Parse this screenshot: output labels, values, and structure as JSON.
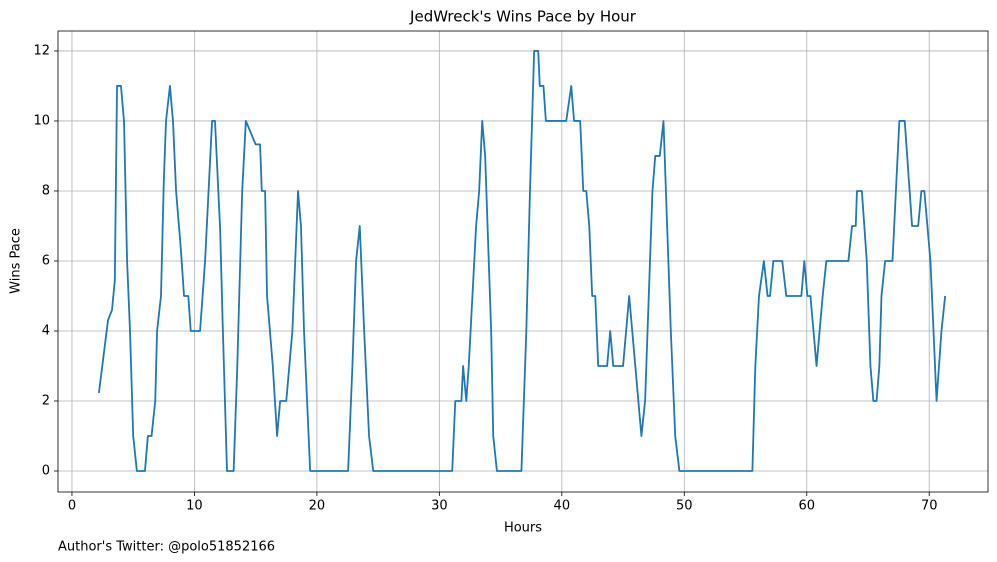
{
  "chart_data": {
    "type": "line",
    "title": "JedWreck's Wins Pace by Hour",
    "x_label": "Hours",
    "y_label": "Wins Pace",
    "footnote": "Author's Twitter: @polo51852166",
    "color": "#1f77b4",
    "grid": true,
    "xlim": [
      -1.14,
      74.8
    ],
    "ylim": [
      -0.6,
      12.57
    ],
    "xticks": [
      0,
      10,
      20,
      30,
      40,
      50,
      60,
      70
    ],
    "yticks": [
      0,
      2,
      4,
      6,
      8,
      10,
      12
    ],
    "x": [
      2.2,
      2.94,
      3.27,
      3.5,
      3.68,
      4.0,
      4.25,
      4.5,
      4.74,
      5.0,
      5.3,
      5.96,
      6.2,
      6.5,
      6.8,
      6.95,
      7.27,
      7.5,
      7.68,
      8.0,
      8.25,
      8.5,
      8.9,
      9.15,
      9.5,
      9.7,
      10.46,
      10.87,
      11.44,
      11.68,
      12.1,
      12.3,
      12.66,
      13.2,
      13.5,
      13.9,
      14.2,
      15.0,
      15.36,
      15.5,
      15.77,
      15.93,
      16.4,
      16.75,
      17.0,
      17.5,
      18.0,
      18.46,
      18.7,
      18.95,
      19.2,
      19.45,
      22.55,
      22.9,
      23.2,
      23.5,
      23.86,
      24.26,
      24.6,
      31.05,
      31.3,
      31.8,
      31.94,
      32.2,
      32.4,
      33.0,
      33.25,
      33.5,
      33.74,
      34.23,
      34.4,
      34.7,
      36.7,
      37.1,
      37.4,
      37.74,
      38.07,
      38.2,
      38.5,
      38.7,
      40.36,
      40.77,
      41.0,
      41.5,
      41.75,
      42.0,
      42.24,
      42.48,
      42.73,
      42.97,
      43.7,
      43.95,
      44.2,
      45.0,
      45.5,
      46.0,
      46.5,
      46.8,
      47.4,
      47.63,
      48.0,
      48.3,
      48.6,
      48.9,
      49.26,
      49.6,
      55.56,
      55.8,
      56.1,
      56.5,
      56.8,
      57.0,
      57.27,
      58.0,
      58.33,
      59.56,
      59.8,
      60.05,
      60.3,
      60.8,
      61.3,
      61.6,
      63.4,
      63.7,
      64.0,
      64.1,
      64.5,
      64.9,
      65.2,
      65.44,
      65.7,
      65.93,
      66.1,
      66.4,
      67.0,
      67.56,
      68.0,
      68.4,
      68.6,
      69.1,
      69.36,
      69.6,
      70.1,
      70.6,
      71.0,
      71.3
    ],
    "values": [
      2.23,
      4.3,
      4.6,
      5.45,
      11,
      11,
      10,
      6,
      4,
      1,
      0,
      0,
      1,
      1,
      2,
      4,
      5,
      8.3,
      10,
      11,
      10,
      8,
      6.3,
      5,
      5,
      4,
      4,
      6,
      10,
      10,
      6.9,
      4.3,
      0,
      0,
      3,
      8,
      10,
      9.33,
      9.33,
      8,
      8,
      5,
      3,
      1,
      2,
      2,
      4,
      8,
      7,
      4,
      2,
      0,
      0,
      3,
      6,
      7,
      4,
      1,
      0,
      0,
      2,
      2,
      3,
      2,
      3,
      7,
      8,
      10,
      9,
      4,
      1,
      0,
      0,
      4,
      8,
      12,
      12,
      11,
      11,
      10,
      10,
      11,
      10,
      10,
      8,
      8,
      7,
      5,
      5,
      3,
      3,
      4,
      3,
      3,
      5,
      3,
      1,
      2,
      8,
      9,
      9,
      10,
      7,
      4,
      1,
      0,
      0,
      3,
      5,
      6,
      5,
      5,
      6,
      6,
      5,
      5,
      6,
      5,
      5,
      3,
      5,
      6,
      6,
      7,
      7,
      8,
      8,
      6,
      3,
      2,
      2,
      3,
      5,
      6,
      6,
      10,
      10,
      8,
      7,
      7,
      8,
      8,
      6,
      2,
      4,
      5
    ]
  }
}
